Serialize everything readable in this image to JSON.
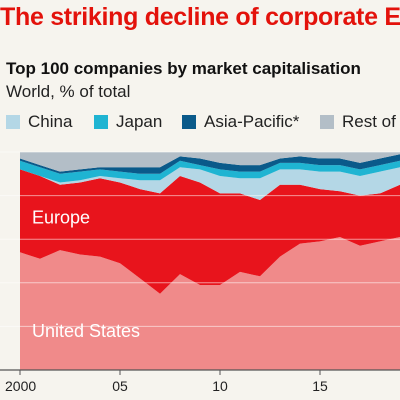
{
  "header": {
    "title": "The striking decline of corporate Eu",
    "subtitle": "Top 100 companies by market capitalisation",
    "units": "World, % of total"
  },
  "colors": {
    "title": "#e3120b",
    "united_states": "#f08a8a",
    "europe": "#e8141c",
    "china": "#b4d7e6",
    "japan": "#1fb4d2",
    "asia_pacific": "#0a5a8a",
    "rest_of_world": "#b3bec7"
  },
  "legend": [
    {
      "label": "China",
      "color": "#b4d7e6"
    },
    {
      "label": "Japan",
      "color": "#1fb4d2"
    },
    {
      "label": "Asia-Pacific*",
      "color": "#0a5a8a"
    },
    {
      "label": "Rest of w",
      "color": "#b3bec7"
    }
  ],
  "chart_data": {
    "type": "area",
    "stacked": true,
    "title": "Top 100 companies by market capitalisation",
    "units": "World, % of total",
    "x": [
      2000,
      2001,
      2002,
      2003,
      2004,
      2005,
      2006,
      2007,
      2008,
      2009,
      2010,
      2011,
      2012,
      2013,
      2014,
      2015,
      2016,
      2017,
      2018,
      2019
    ],
    "x_tick_labels": [
      "2000",
      "05",
      "10",
      "15"
    ],
    "x_tick_values": [
      2000,
      2005,
      2010,
      2015
    ],
    "ylim": [
      0,
      100
    ],
    "grid": true,
    "legend_position": "top",
    "series": [
      {
        "name": "United States",
        "values": [
          54,
          51,
          55,
          53,
          52,
          49,
          42,
          35,
          44,
          39,
          39,
          45,
          43,
          52,
          58,
          59,
          61,
          57,
          59,
          61
        ]
      },
      {
        "name": "Europe",
        "values": [
          38,
          38,
          30,
          33,
          36,
          37,
          41,
          46,
          45,
          47,
          42,
          36,
          35,
          33,
          27,
          24,
          21,
          23,
          22,
          24
        ]
      },
      {
        "name": "China",
        "values": [
          0,
          0,
          1,
          1,
          1,
          2,
          4,
          6,
          4,
          6,
          8,
          7,
          10,
          7,
          7,
          8,
          9,
          9,
          10,
          8
        ]
      },
      {
        "name": "Japan",
        "values": [
          4,
          4,
          4,
          4,
          3,
          3,
          3,
          3,
          3,
          2,
          3,
          3,
          3,
          3,
          3,
          3,
          3,
          3,
          3,
          3
        ]
      },
      {
        "name": "Asia-Pacific*",
        "values": [
          1,
          1,
          1,
          1,
          1,
          2,
          3,
          3,
          2,
          3,
          3,
          3,
          3,
          2,
          3,
          3,
          3,
          3,
          3,
          3
        ]
      },
      {
        "name": "Rest of w",
        "values": [
          3,
          6,
          9,
          8,
          7,
          7,
          7,
          7,
          2,
          3,
          5,
          6,
          6,
          3,
          2,
          3,
          3,
          5,
          3,
          1
        ]
      }
    ],
    "area_labels": [
      {
        "series": "Europe",
        "text": "Europe"
      },
      {
        "series": "United States",
        "text": "United States"
      }
    ]
  }
}
